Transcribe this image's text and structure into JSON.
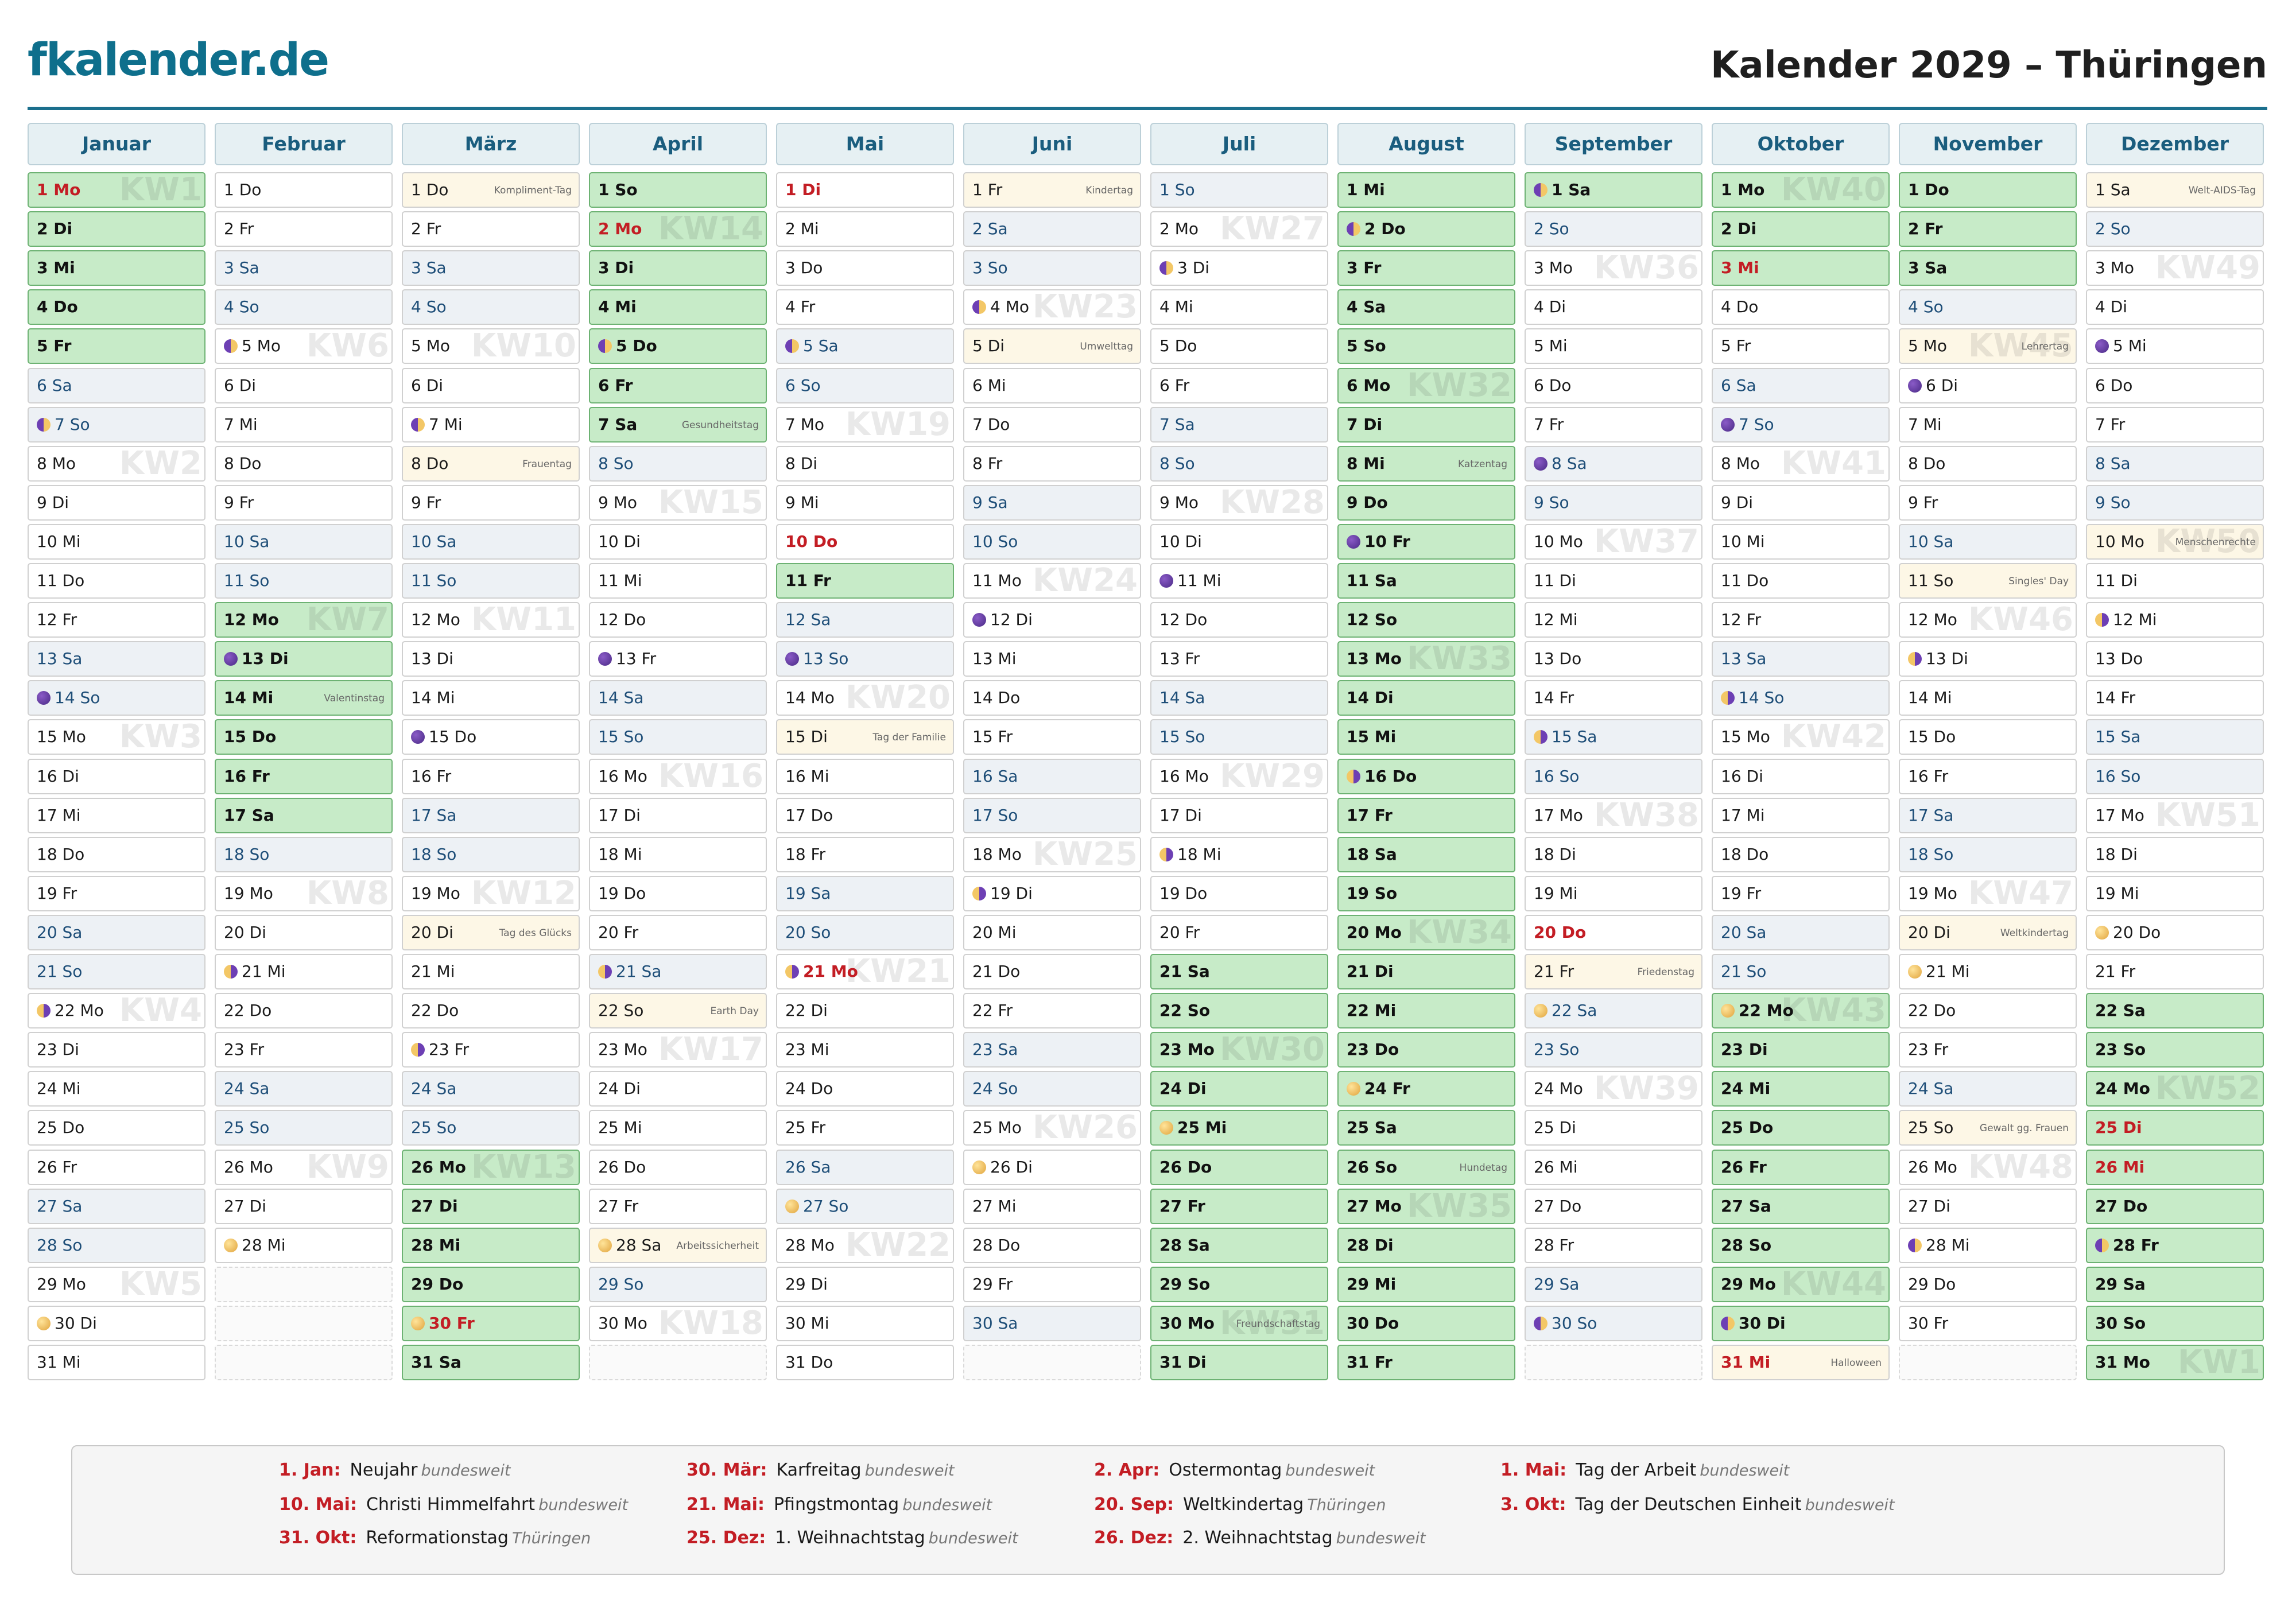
{
  "brand": "fkalender.de",
  "title": "Kalender 2029 – Thüringen",
  "months": [
    {
      "name": "Januar",
      "days": [
        "Mo",
        "Di",
        "Mi",
        "Do",
        "Fr",
        "Sa",
        "So",
        "Mo",
        "Di",
        "Mi",
        "Do",
        "Fr",
        "Sa",
        "So",
        "Mo",
        "Di",
        "Mi",
        "Do",
        "Fr",
        "Sa",
        "So",
        "Mo",
        "Di",
        "Mi",
        "Do",
        "Fr",
        "Sa",
        "So",
        "Mo",
        "Di",
        "Mi"
      ]
    },
    {
      "name": "Februar",
      "days": [
        "Do",
        "Fr",
        "Sa",
        "So",
        "Mo",
        "Di",
        "Mi",
        "Do",
        "Fr",
        "Sa",
        "So",
        "Mo",
        "Di",
        "Mi",
        "Do",
        "Fr",
        "Sa",
        "So",
        "Mo",
        "Di",
        "Mi",
        "Do",
        "Fr",
        "Sa",
        "So",
        "Mo",
        "Di",
        "Mi"
      ]
    },
    {
      "name": "März",
      "days": [
        "Do",
        "Fr",
        "Sa",
        "So",
        "Mo",
        "Di",
        "Mi",
        "Do",
        "Fr",
        "Sa",
        "So",
        "Mo",
        "Di",
        "Mi",
        "Do",
        "Fr",
        "Sa",
        "So",
        "Mo",
        "Di",
        "Mi",
        "Do",
        "Fr",
        "Sa",
        "So",
        "Mo",
        "Di",
        "Mi",
        "Do",
        "Fr",
        "Sa"
      ]
    },
    {
      "name": "April",
      "days": [
        "So",
        "Mo",
        "Di",
        "Mi",
        "Do",
        "Fr",
        "Sa",
        "So",
        "Mo",
        "Di",
        "Mi",
        "Do",
        "Fr",
        "Sa",
        "So",
        "Mo",
        "Di",
        "Mi",
        "Do",
        "Fr",
        "Sa",
        "So",
        "Mo",
        "Di",
        "Mi",
        "Do",
        "Fr",
        "Sa",
        "So",
        "Mo"
      ]
    },
    {
      "name": "Mai",
      "days": [
        "Di",
        "Mi",
        "Do",
        "Fr",
        "Sa",
        "So",
        "Mo",
        "Di",
        "Mi",
        "Do",
        "Fr",
        "Sa",
        "So",
        "Mo",
        "Di",
        "Mi",
        "Do",
        "Fr",
        "Sa",
        "So",
        "Mo",
        "Di",
        "Mi",
        "Do",
        "Fr",
        "Sa",
        "So",
        "Mo",
        "Di",
        "Mi",
        "Do"
      ]
    },
    {
      "name": "Juni",
      "days": [
        "Fr",
        "Sa",
        "So",
        "Mo",
        "Di",
        "Mi",
        "Do",
        "Fr",
        "Sa",
        "So",
        "Mo",
        "Di",
        "Mi",
        "Do",
        "Fr",
        "Sa",
        "So",
        "Mo",
        "Di",
        "Mi",
        "Do",
        "Fr",
        "Sa",
        "So",
        "Mo",
        "Di",
        "Mi",
        "Do",
        "Fr",
        "Sa"
      ]
    },
    {
      "name": "Juli",
      "days": [
        "So",
        "Mo",
        "Di",
        "Mi",
        "Do",
        "Fr",
        "Sa",
        "So",
        "Mo",
        "Di",
        "Mi",
        "Do",
        "Fr",
        "Sa",
        "So",
        "Mo",
        "Di",
        "Mi",
        "Do",
        "Fr",
        "Sa",
        "So",
        "Mo",
        "Di",
        "Mi",
        "Do",
        "Fr",
        "Sa",
        "So",
        "Mo",
        "Di"
      ]
    },
    {
      "name": "August",
      "days": [
        "Mi",
        "Do",
        "Fr",
        "Sa",
        "So",
        "Mo",
        "Di",
        "Mi",
        "Do",
        "Fr",
        "Sa",
        "So",
        "Mo",
        "Di",
        "Mi",
        "Do",
        "Fr",
        "Sa",
        "So",
        "Mo",
        "Di",
        "Mi",
        "Do",
        "Fr",
        "Sa",
        "So",
        "Mo",
        "Di",
        "Mi",
        "Do",
        "Fr"
      ]
    },
    {
      "name": "September",
      "days": [
        "Sa",
        "So",
        "Mo",
        "Di",
        "Mi",
        "Do",
        "Fr",
        "Sa",
        "So",
        "Mo",
        "Di",
        "Mi",
        "Do",
        "Fr",
        "Sa",
        "So",
        "Mo",
        "Di",
        "Mi",
        "Do",
        "Fr",
        "Sa",
        "So",
        "Mo",
        "Di",
        "Mi",
        "Do",
        "Fr",
        "Sa",
        "So"
      ]
    },
    {
      "name": "Oktober",
      "days": [
        "Mo",
        "Di",
        "Mi",
        "Do",
        "Fr",
        "Sa",
        "So",
        "Mo",
        "Di",
        "Mi",
        "Do",
        "Fr",
        "Sa",
        "So",
        "Mo",
        "Di",
        "Mi",
        "Do",
        "Fr",
        "Sa",
        "So",
        "Mo",
        "Di",
        "Mi",
        "Do",
        "Fr",
        "Sa",
        "So",
        "Mo",
        "Di",
        "Mi"
      ]
    },
    {
      "name": "November",
      "days": [
        "Do",
        "Fr",
        "Sa",
        "So",
        "Mo",
        "Di",
        "Mi",
        "Do",
        "Fr",
        "Sa",
        "So",
        "Mo",
        "Di",
        "Mi",
        "Do",
        "Fr",
        "Sa",
        "So",
        "Mo",
        "Di",
        "Mi",
        "Do",
        "Fr",
        "Sa",
        "So",
        "Mo",
        "Di",
        "Mi",
        "Do",
        "Fr"
      ]
    },
    {
      "name": "Dezember",
      "days": [
        "Sa",
        "So",
        "Mo",
        "Di",
        "Mi",
        "Do",
        "Fr",
        "Sa",
        "So",
        "Mo",
        "Di",
        "Mi",
        "Do",
        "Fr",
        "Sa",
        "So",
        "Mo",
        "Di",
        "Mi",
        "Do",
        "Fr",
        "Sa",
        "So",
        "Mo",
        "Di",
        "Mi",
        "Do",
        "Fr",
        "Sa",
        "So",
        "Mo"
      ]
    }
  ],
  "holidays": [
    "1-1",
    "1-2",
    "1-3",
    "1-4",
    "1-5",
    "2-12",
    "2-13",
    "2-14",
    "2-15",
    "2-16",
    "2-17",
    "3-26",
    "3-27",
    "3-28",
    "3-29",
    "3-30",
    "3-31",
    "4-1",
    "4-2",
    "4-3",
    "4-4",
    "4-5",
    "4-6",
    "4-7",
    "5-11",
    "7-21",
    "7-22",
    "7-23",
    "7-24",
    "7-25",
    "7-26",
    "7-27",
    "7-28",
    "7-29",
    "7-30",
    "7-31",
    "8-1",
    "8-2",
    "8-3",
    "8-4",
    "8-5",
    "8-6",
    "8-7",
    "8-8",
    "8-9",
    "8-10",
    "8-11",
    "8-12",
    "8-13",
    "8-14",
    "8-15",
    "8-16",
    "8-17",
    "8-18",
    "8-19",
    "8-20",
    "8-21",
    "8-22",
    "8-23",
    "8-24",
    "8-25",
    "8-26",
    "8-27",
    "8-28",
    "8-29",
    "8-30",
    "8-31",
    "9-1",
    "10-1",
    "10-2",
    "10-3",
    "10-22",
    "10-23",
    "10-24",
    "10-25",
    "10-26",
    "10-27",
    "10-28",
    "10-29",
    "10-30",
    "11-1",
    "11-2",
    "11-3",
    "12-22",
    "12-23",
    "12-24",
    "12-25",
    "12-26",
    "12-27",
    "12-28",
    "12-29",
    "12-30",
    "12-31"
  ],
  "holidays_note": "holiday markers are month-day keys used to shade school-holiday cells",
  "red_days": [
    "1-1",
    "3-30",
    "4-2",
    "5-1",
    "5-10",
    "5-21",
    "9-20",
    "10-3",
    "10-31",
    "12-25",
    "12-26"
  ],
  "moons": {
    "1-7": "fq",
    "1-14": "nm",
    "1-22": "lq",
    "1-30": "fm",
    "2-5": "fq",
    "2-13": "nm",
    "2-21": "lq",
    "2-28": "fm",
    "3-7": "fq",
    "3-15": "nm",
    "3-23": "lq",
    "3-30": "fm",
    "4-5": "fq",
    "4-13": "nm",
    "4-21": "lq",
    "4-28": "fm",
    "5-5": "fq",
    "5-13": "nm",
    "5-21": "lq",
    "5-27": "fm",
    "6-4": "fq",
    "6-12": "nm",
    "6-19": "lq",
    "6-26": "fm",
    "7-3": "fq",
    "7-11": "nm",
    "7-18": "lq",
    "7-25": "fm",
    "8-2": "fq",
    "8-10": "nm",
    "8-16": "lq",
    "8-24": "fm",
    "9-1": "fq",
    "9-8": "nm",
    "9-15": "lq",
    "9-22": "fm",
    "9-30": "fq",
    "10-7": "nm",
    "10-14": "lq",
    "10-22": "fm",
    "10-30": "fq",
    "11-6": "nm",
    "11-13": "lq",
    "11-21": "fm",
    "11-28": "fq",
    "12-5": "nm",
    "12-12": "lq",
    "12-20": "fm",
    "12-28": "fq"
  },
  "events": {
    "1-29": "",
    "2-14": "Valentinstag",
    "3-1": "Kompliment-Tag",
    "3-8": "Frauentag",
    "3-20": "Tag des Glücks",
    "4-7": "Gesundheitstag",
    "4-22": "Earth Day",
    "4-28": "Arbeitssicherheit",
    "5-15": "Tag der Familie",
    "6-1": "Kindertag",
    "6-5": "Umwelttag",
    "7-30": "Freundschaftstag",
    "8-8": "Katzentag",
    "8-26": "Hundetag",
    "9-21": "Friedenstag",
    "10-31": "Halloween",
    "11-5": "Lehrertag",
    "11-11": "Singles' Day",
    "11-25": "Gewalt gg. Frauen",
    "12-1": "Welt-AIDS-Tag",
    "12-10": "Menschenrechte",
    "11-20": "Weltkindertag"
  },
  "event_cells": [
    "2-14",
    "3-1",
    "3-8",
    "3-20",
    "4-7",
    "4-22",
    "4-28",
    "5-15",
    "6-1",
    "6-5",
    "7-30",
    "8-8",
    "8-26",
    "9-21",
    "10-31",
    "11-5",
    "11-11",
    "11-25",
    "12-1",
    "12-10",
    "11-20"
  ],
  "kw": {
    "1-1": "KW1",
    "1-8": "KW2",
    "1-15": "KW3",
    "1-22": "KW4",
    "1-29": "KW5",
    "2-5": "KW6",
    "2-12": "KW7",
    "2-19": "KW8",
    "2-26": "KW9",
    "3-5": "KW10",
    "3-12": "KW11",
    "3-19": "KW12",
    "3-26": "KW13",
    "4-2": "KW14",
    "4-9": "KW15",
    "4-16": "KW16",
    "4-23": "KW17",
    "4-30": "KW18",
    "5-7": "KW19",
    "5-14": "KW20",
    "5-21": "KW21",
    "5-28": "KW22",
    "6-4": "KW23",
    "6-11": "KW24",
    "6-18": "KW25",
    "6-25": "KW26",
    "7-2": "KW27",
    "7-9": "KW28",
    "7-16": "KW29",
    "7-23": "KW30",
    "7-30": "KW31",
    "8-6": "KW32",
    "8-13": "KW33",
    "8-20": "KW34",
    "8-27": "KW35",
    "9-3": "KW36",
    "9-10": "KW37",
    "9-17": "KW38",
    "9-24": "KW39",
    "10-1": "KW40",
    "10-8": "KW41",
    "10-15": "KW42",
    "10-22": "KW43",
    "10-29": "KW44",
    "11-5": "KW45",
    "11-12": "KW46",
    "11-19": "KW47",
    "11-26": "KW48",
    "12-3": "KW49",
    "12-10": "KW50",
    "12-17": "KW51",
    "12-24": "KW52",
    "12-31": "KW1"
  },
  "legend": [
    [
      {
        "date": "1. Jan:",
        "name": "Neujahr",
        "scope": "bundesweit"
      },
      {
        "date": "10. Mai:",
        "name": "Christi Himmelfahrt",
        "scope": "bundesweit"
      },
      {
        "date": "31. Okt:",
        "name": "Reformationstag",
        "scope": "Thüringen"
      }
    ],
    [
      {
        "date": "30. Mär:",
        "name": "Karfreitag",
        "scope": "bundesweit"
      },
      {
        "date": "21. Mai:",
        "name": "Pfingstmontag",
        "scope": "bundesweit"
      },
      {
        "date": "25. Dez:",
        "name": "1. Weihnachtstag",
        "scope": "bundesweit"
      }
    ],
    [
      {
        "date": "2. Apr:",
        "name": "Ostermontag",
        "scope": "bundesweit"
      },
      {
        "date": "20. Sep:",
        "name": "Weltkindertag",
        "scope": "Thüringen"
      },
      {
        "date": "26. Dez:",
        "name": "2. Weihnachtstag",
        "scope": "bundesweit"
      }
    ],
    [
      {
        "date": "1. Mai:",
        "name": "Tag der Arbeit",
        "scope": "bundesweit"
      },
      {
        "date": "3. Okt:",
        "name": "Tag der Deutschen Einheit",
        "scope": "bundesweit"
      }
    ]
  ]
}
